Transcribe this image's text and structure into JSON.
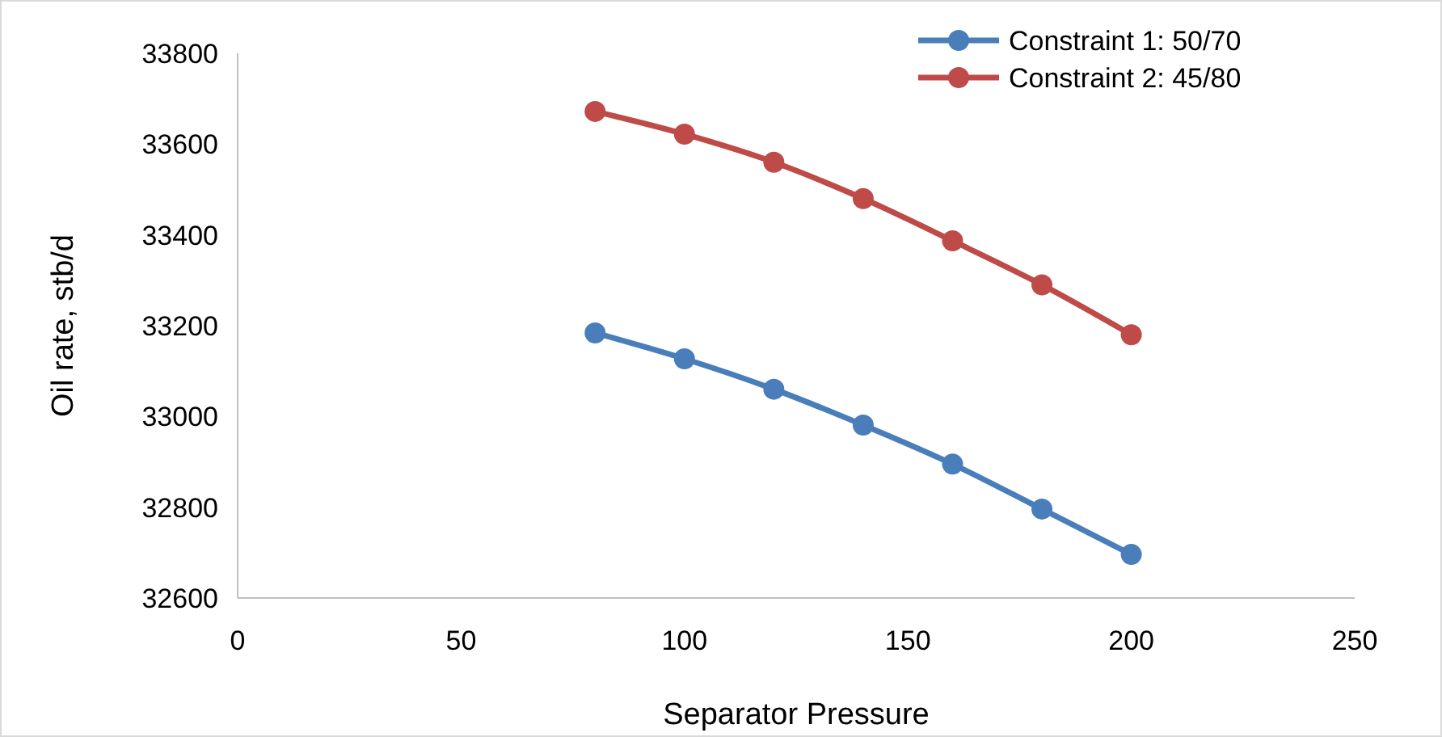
{
  "chart_data": {
    "type": "line",
    "xlabel": "Separator Pressure",
    "ylabel": "Oil rate, stb/d",
    "x": [
      80,
      100,
      120,
      140,
      160,
      180,
      200
    ],
    "series": [
      {
        "name": "Constraint 1: 50/70",
        "color": "#4a7ebb",
        "values": [
          33184,
          33127,
          33060,
          32981,
          32895,
          32796,
          32696
        ]
      },
      {
        "name": "Constraint 2: 45/80",
        "color": "#be4b48",
        "values": [
          33672,
          33622,
          33560,
          33480,
          33387,
          33290,
          33180
        ]
      }
    ],
    "xlim": [
      0,
      250
    ],
    "xticks": [
      0,
      50,
      100,
      150,
      200,
      250
    ],
    "ylim": [
      32600,
      33800
    ],
    "yticks": [
      32600,
      32800,
      33000,
      33200,
      33400,
      33600,
      33800
    ],
    "grid": false,
    "legend": "top right",
    "marker": "circle",
    "line_style": "solid"
  }
}
